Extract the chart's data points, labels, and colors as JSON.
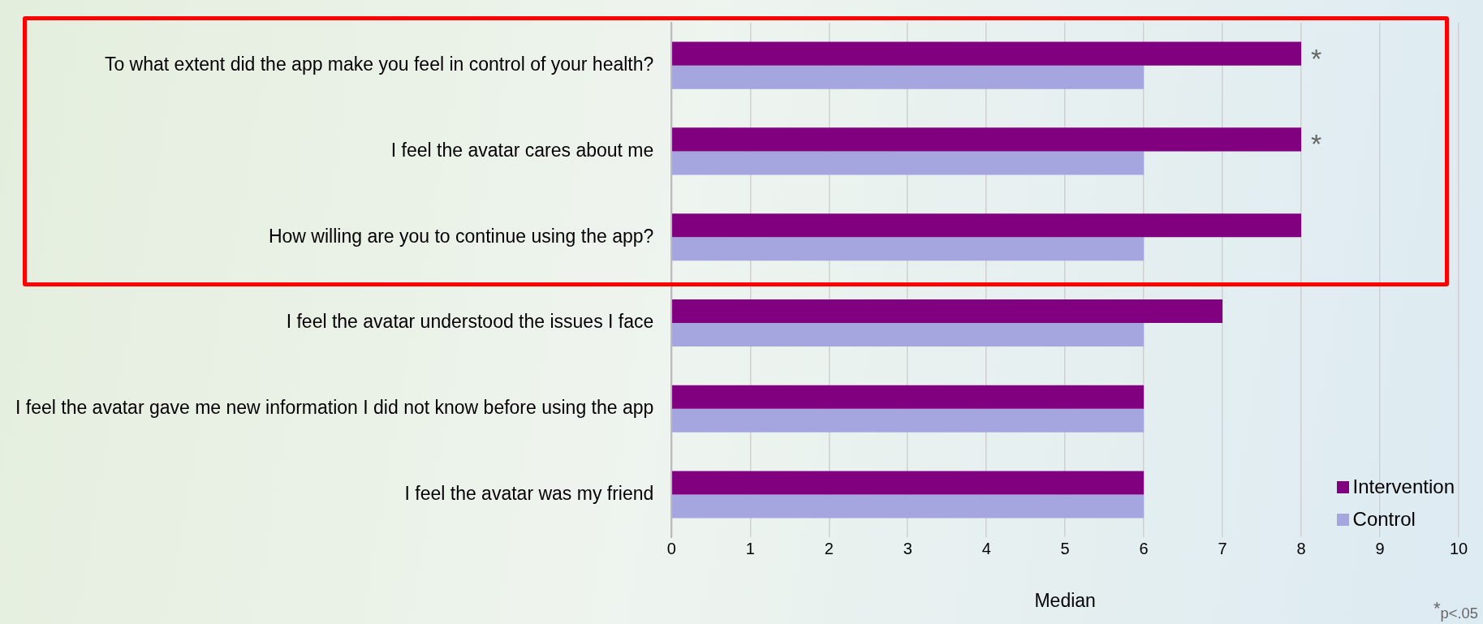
{
  "chart_data": {
    "type": "bar",
    "orientation": "horizontal",
    "xlabel": "Median",
    "categories": [
      "To what extent did the app make you feel in control of your health?",
      "I feel the avatar cares about me",
      "How willing are you to continue using the app?",
      "I feel the avatar understood the issues I face",
      "I feel the avatar gave me new information I did not know before using the app",
      "I feel the avatar was my friend"
    ],
    "series": [
      {
        "name": "Intervention",
        "color": "#800080",
        "values": [
          8,
          8,
          8,
          7,
          6,
          6
        ]
      },
      {
        "name": "Control",
        "color": "#a5a5e0",
        "values": [
          6,
          6,
          6,
          6,
          6,
          6
        ]
      }
    ],
    "xlim": [
      0,
      10
    ],
    "xticks": [
      0,
      1,
      2,
      3,
      4,
      5,
      6,
      7,
      8,
      9,
      10
    ],
    "grid": "x",
    "legend": "bottom right",
    "annotations": [
      {
        "text": "*",
        "x": 8,
        "y": "To what extent did the app make you feel in control of your health?"
      },
      {
        "text": "*",
        "x": 8,
        "y": "I feel the avatar cares about me"
      },
      "*$_{p<.05}$"
    ]
  }
}
